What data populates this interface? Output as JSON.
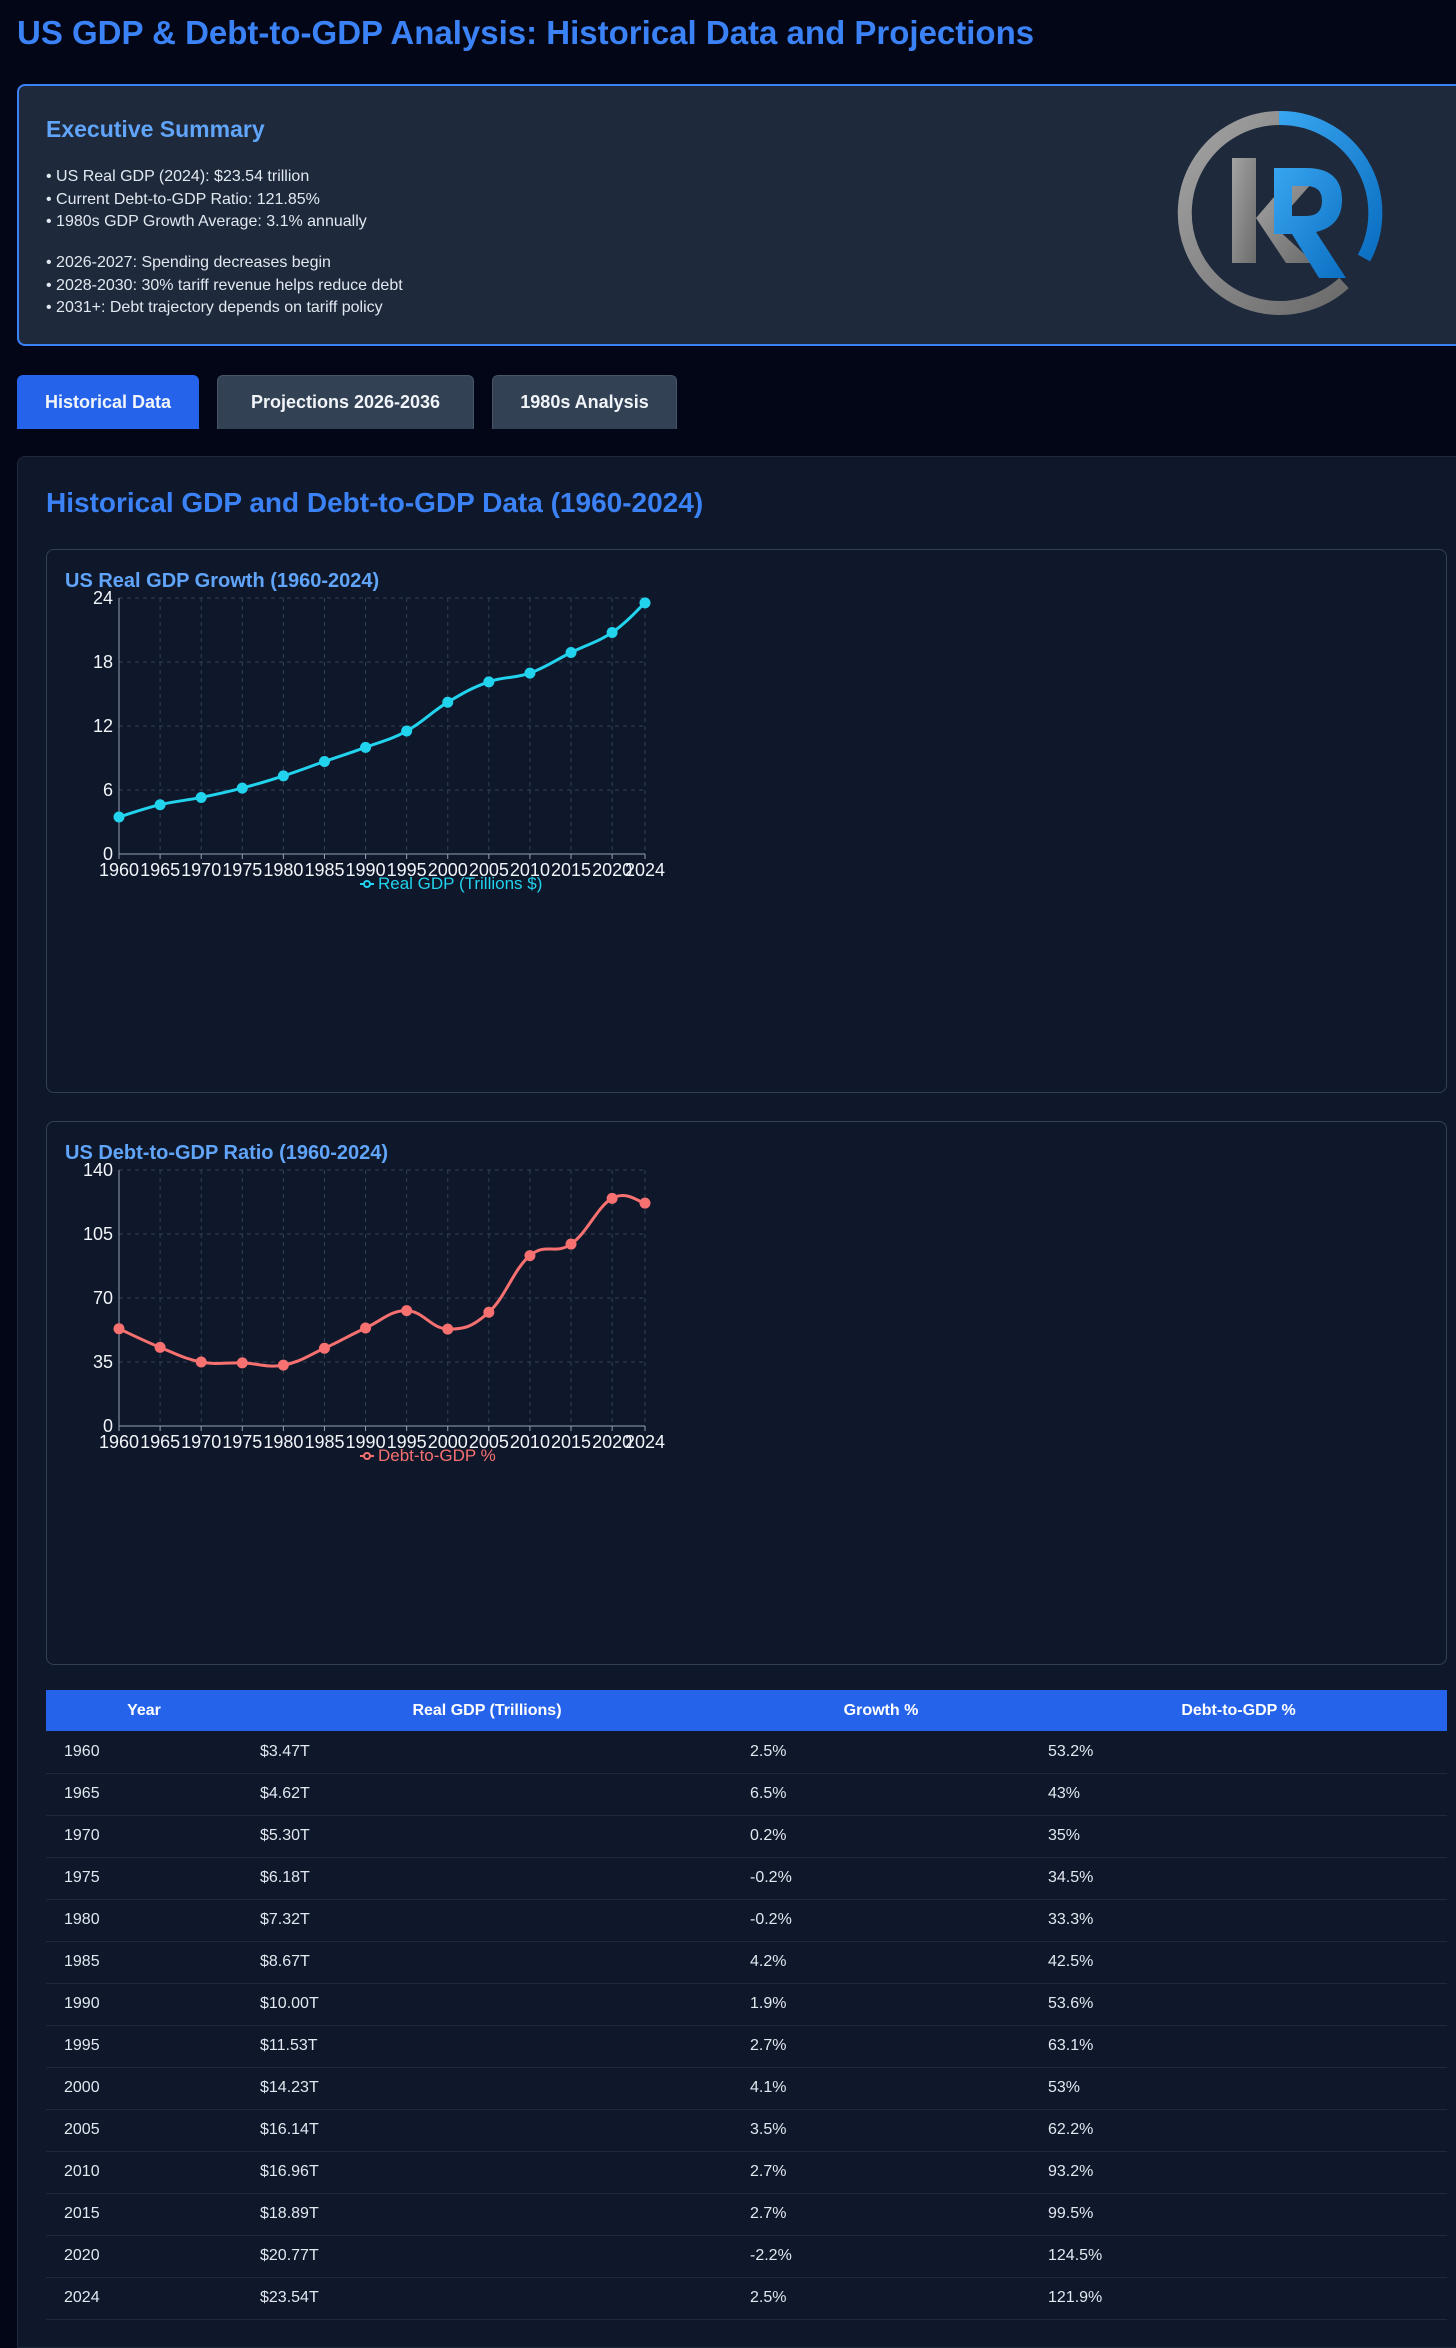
{
  "page": {
    "title": "US GDP & Debt-to-GDP Analysis: Historical Data and Projections"
  },
  "summary": {
    "title": "Executive Summary",
    "group1": [
      "• US Real GDP (2024): $23.54 trillion",
      "• Current Debt-to-GDP Ratio: 121.85%",
      "• 1980s GDP Growth Average: 3.1% annually"
    ],
    "group2": [
      "• 2026-2027: Spending decreases begin",
      "• 2028-2030: 30% tariff revenue helps reduce debt",
      "• 2031+: Debt trajectory depends on tariff policy"
    ],
    "logo": {
      "icon": "kr-logo-icon",
      "letters": "kR",
      "colors": {
        "ring": "#8b8b8b",
        "accent": "#1d8fe0"
      }
    }
  },
  "tabs": [
    {
      "label": "Historical Data",
      "active": true
    },
    {
      "label": "Projections 2026-2036",
      "active": false
    },
    {
      "label": "1980s Analysis",
      "active": false
    }
  ],
  "panel": {
    "title": "Historical GDP and Debt-to-GDP Data (1960-2024)"
  },
  "chart_data": [
    {
      "type": "line",
      "title": "US Real GDP Growth (1960-2024)",
      "x": [
        1960,
        1965,
        1970,
        1975,
        1980,
        1985,
        1990,
        1995,
        2000,
        2005,
        2010,
        2015,
        2020,
        2024
      ],
      "series": [
        {
          "name": "Real GDP (Trillions $)",
          "color": "#22d3ee",
          "values": [
            3.47,
            4.62,
            5.3,
            6.18,
            7.32,
            8.67,
            10.0,
            11.53,
            14.23,
            16.14,
            16.96,
            18.89,
            20.77,
            23.54
          ]
        }
      ],
      "yticks": [
        0,
        6,
        12,
        18,
        24
      ],
      "ylim": [
        0,
        24
      ],
      "grid": true,
      "legend": "bottom"
    },
    {
      "type": "line",
      "title": "US Debt-to-GDP Ratio (1960-2024)",
      "x": [
        1960,
        1965,
        1970,
        1975,
        1980,
        1985,
        1990,
        1995,
        2000,
        2005,
        2010,
        2015,
        2020,
        2024
      ],
      "series": [
        {
          "name": "Debt-to-GDP %",
          "color": "#f87171",
          "values": [
            53.2,
            43,
            35,
            34.5,
            33.3,
            42.5,
            53.6,
            63.1,
            53,
            62.2,
            93.2,
            99.5,
            124.5,
            121.9
          ]
        }
      ],
      "yticks": [
        0,
        35,
        70,
        105,
        140
      ],
      "ylim": [
        0,
        140
      ],
      "grid": true,
      "legend": "bottom"
    }
  ],
  "table": {
    "headers": [
      "Year",
      "Real GDP (Trillions)",
      "Growth %",
      "Debt-to-GDP %"
    ],
    "rows": [
      [
        "1960",
        "$3.47T",
        "2.5%",
        "53.2%"
      ],
      [
        "1965",
        "$4.62T",
        "6.5%",
        "43%"
      ],
      [
        "1970",
        "$5.30T",
        "0.2%",
        "35%"
      ],
      [
        "1975",
        "$6.18T",
        "-0.2%",
        "34.5%"
      ],
      [
        "1980",
        "$7.32T",
        "-0.2%",
        "33.3%"
      ],
      [
        "1985",
        "$8.67T",
        "4.2%",
        "42.5%"
      ],
      [
        "1990",
        "$10.00T",
        "1.9%",
        "53.6%"
      ],
      [
        "1995",
        "$11.53T",
        "2.7%",
        "63.1%"
      ],
      [
        "2000",
        "$14.23T",
        "4.1%",
        "53%"
      ],
      [
        "2005",
        "$16.14T",
        "3.5%",
        "62.2%"
      ],
      [
        "2010",
        "$16.96T",
        "2.7%",
        "93.2%"
      ],
      [
        "2015",
        "$18.89T",
        "2.7%",
        "99.5%"
      ],
      [
        "2020",
        "$20.77T",
        "-2.2%",
        "124.5%"
      ],
      [
        "2024",
        "$23.54T",
        "2.5%",
        "121.9%"
      ]
    ]
  },
  "colors": {
    "background": "#020617",
    "panel": "#0f172a",
    "accent": "#3b82f6",
    "tab_active": "#2563eb",
    "tab_inactive": "#334155"
  }
}
